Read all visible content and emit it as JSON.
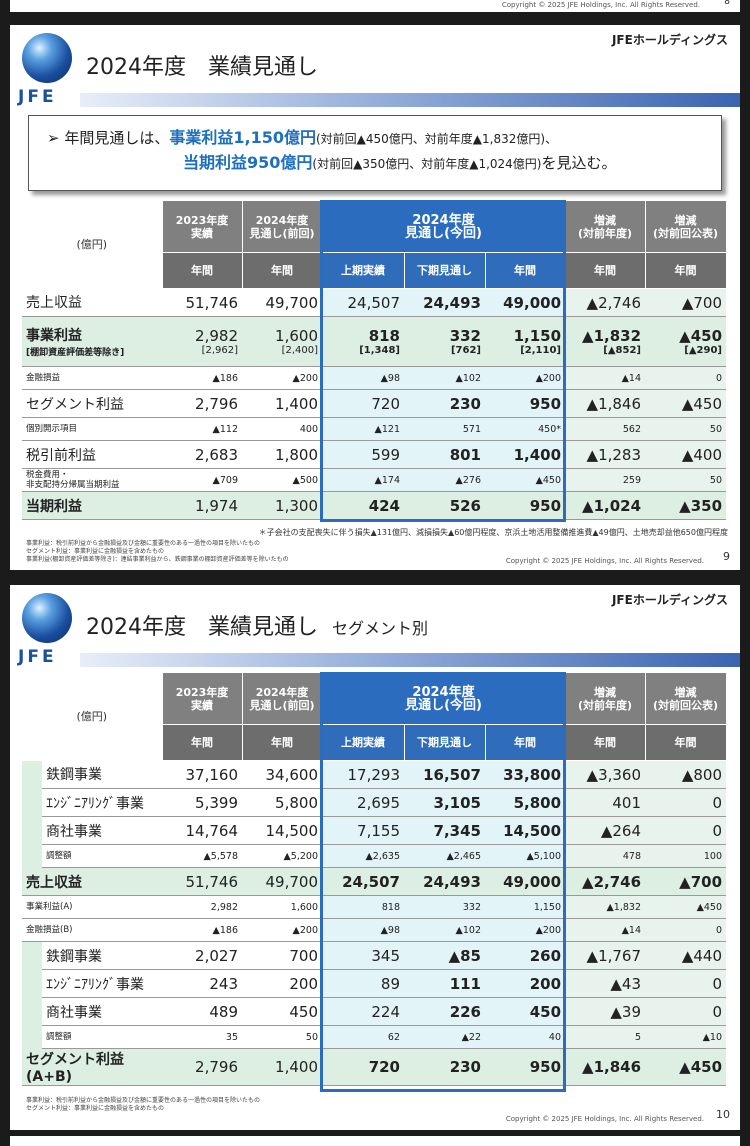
{
  "copyright": "Copyright © 2025 JFE Holdings, Inc. All Rights Reserved.",
  "top_page_num": "8",
  "company": "JFEホールディングス",
  "logo_text": "JFE",
  "unit": "(億円)",
  "headers": {
    "fy2023": "2023年度\n実績",
    "fy2024_prev": "2024年度\n見通し(前回)",
    "fy2024_now": "2024年度\n見通し(今回)",
    "diff_year": "増減\n(対前年度)",
    "diff_prev": "増減\n(対前回公表)",
    "annual": "年間",
    "h1": "上期実績",
    "h2": "下期見通し"
  },
  "slide1": {
    "title": "2024年度　業績見通し",
    "summary": {
      "prefix": "年間見通しは、",
      "business_profit": "事業利益1,150億円",
      "bp_detail": "(対前回▲450億円、対前年度▲1,832億円)、",
      "net_profit": "当期利益950億円",
      "np_detail": "(対前回▲350億円、対前年度▲1,024億円)",
      "suffix": "を見込む。"
    },
    "rows": [
      {
        "label": "売上収益",
        "type": "big",
        "v": [
          "51,746",
          "49,700",
          "24,507",
          "24,493",
          "49,000",
          "▲2,746",
          "▲700"
        ]
      },
      {
        "label": "事業利益",
        "sublabel": "[棚卸資産評価差等除き]",
        "type": "big hl",
        "v": [
          "2,982",
          "1,600",
          "818",
          "332",
          "1,150",
          "▲1,832",
          "▲450"
        ],
        "sub": [
          "[2,962]",
          "[2,400]",
          "[1,348]",
          "[762]",
          "[2,110]",
          "[▲852]",
          "[▲290]"
        ]
      },
      {
        "label": "金融損益",
        "type": "small",
        "v": [
          "▲186",
          "▲200",
          "▲98",
          "▲102",
          "▲200",
          "▲14",
          "0"
        ]
      },
      {
        "label": "セグメント利益",
        "type": "big",
        "v": [
          "2,796",
          "1,400",
          "720",
          "230",
          "950",
          "▲1,846",
          "▲450"
        ]
      },
      {
        "label": "個別開示項目",
        "type": "small",
        "v": [
          "▲112",
          "400",
          "▲121",
          "571",
          "450*",
          "562",
          "50"
        ]
      },
      {
        "label": "税引前利益",
        "type": "big",
        "v": [
          "2,683",
          "1,800",
          "599",
          "801",
          "1,400",
          "▲1,283",
          "▲400"
        ]
      },
      {
        "label": "税金費用・\n非支配持分帰属当期利益",
        "type": "small",
        "v": [
          "▲709",
          "▲500",
          "▲174",
          "▲276",
          "▲450",
          "259",
          "50"
        ]
      },
      {
        "label": "当期利益",
        "type": "big hl",
        "v": [
          "1,974",
          "1,300",
          "424",
          "526",
          "950",
          "▲1,024",
          "▲350"
        ]
      }
    ],
    "asterisk_note": "＊子会社の支配喪失に伴う損失▲131億円、減損損失▲60億円程度、京浜土地活用整備推進費▲49億円、土地売却益他650億円程度",
    "notes": [
      "事業利益：税引前利益から金融損益及び金額に重要性のある一過性の項目を除いたもの",
      "セグメント利益：事業利益に金融損益を含めたもの",
      "事業利益(棚卸資産評価差等除き)：連結事業利益から、鉄鋼事業の棚卸資産評価差等を除いたもの"
    ],
    "page_num": "9"
  },
  "slide2": {
    "title": "2024年度　業績見通し",
    "subtitle": "セグメント別",
    "rows": [
      {
        "label": "鉄鋼事業",
        "type": "big",
        "seg": true,
        "v": [
          "37,160",
          "34,600",
          "17,293",
          "16,507",
          "33,800",
          "▲3,360",
          "▲800"
        ]
      },
      {
        "label": "ｴﾝｼﾞﾆｱﾘﾝｸﾞ事業",
        "type": "big",
        "seg": true,
        "v": [
          "5,399",
          "5,800",
          "2,695",
          "3,105",
          "5,800",
          "401",
          "0"
        ]
      },
      {
        "label": "商社事業",
        "type": "big",
        "seg": true,
        "v": [
          "14,764",
          "14,500",
          "7,155",
          "7,345",
          "14,500",
          "▲264",
          "0"
        ]
      },
      {
        "label": "調整額",
        "type": "small",
        "seg": true,
        "v": [
          "▲5,578",
          "▲5,200",
          "▲2,635",
          "▲2,465",
          "▲5,100",
          "478",
          "100"
        ]
      },
      {
        "label": "売上収益",
        "type": "big hl",
        "v": [
          "51,746",
          "49,700",
          "24,507",
          "24,493",
          "49,000",
          "▲2,746",
          "▲700"
        ]
      },
      {
        "label": "事業利益(A)",
        "type": "small",
        "v": [
          "2,982",
          "1,600",
          "818",
          "332",
          "1,150",
          "▲1,832",
          "▲450"
        ]
      },
      {
        "label": "金融損益(B)",
        "type": "small",
        "v": [
          "▲186",
          "▲200",
          "▲98",
          "▲102",
          "▲200",
          "▲14",
          "0"
        ]
      },
      {
        "label": "鉄鋼事業",
        "type": "big",
        "seg": true,
        "v": [
          "2,027",
          "700",
          "345",
          "▲85",
          "260",
          "▲1,767",
          "▲440"
        ]
      },
      {
        "label": "ｴﾝｼﾞﾆｱﾘﾝｸﾞ事業",
        "type": "big",
        "seg": true,
        "v": [
          "243",
          "200",
          "89",
          "111",
          "200",
          "▲43",
          "0"
        ]
      },
      {
        "label": "商社事業",
        "type": "big",
        "seg": true,
        "v": [
          "489",
          "450",
          "224",
          "226",
          "450",
          "▲39",
          "0"
        ]
      },
      {
        "label": "調整額",
        "type": "small",
        "seg": true,
        "v": [
          "35",
          "50",
          "62",
          "▲22",
          "40",
          "5",
          "▲10"
        ]
      },
      {
        "label": "セグメント利益(A+B)",
        "type": "big hl",
        "v": [
          "2,796",
          "1,400",
          "720",
          "230",
          "950",
          "▲1,846",
          "▲450"
        ]
      }
    ],
    "notes": [
      "事業利益：税引前利益から金融損益及び金額に重要性のある一過性の項目を除いたもの",
      "セグメント利益：事業利益に金融損益を含めたもの"
    ],
    "page_num": "10"
  }
}
